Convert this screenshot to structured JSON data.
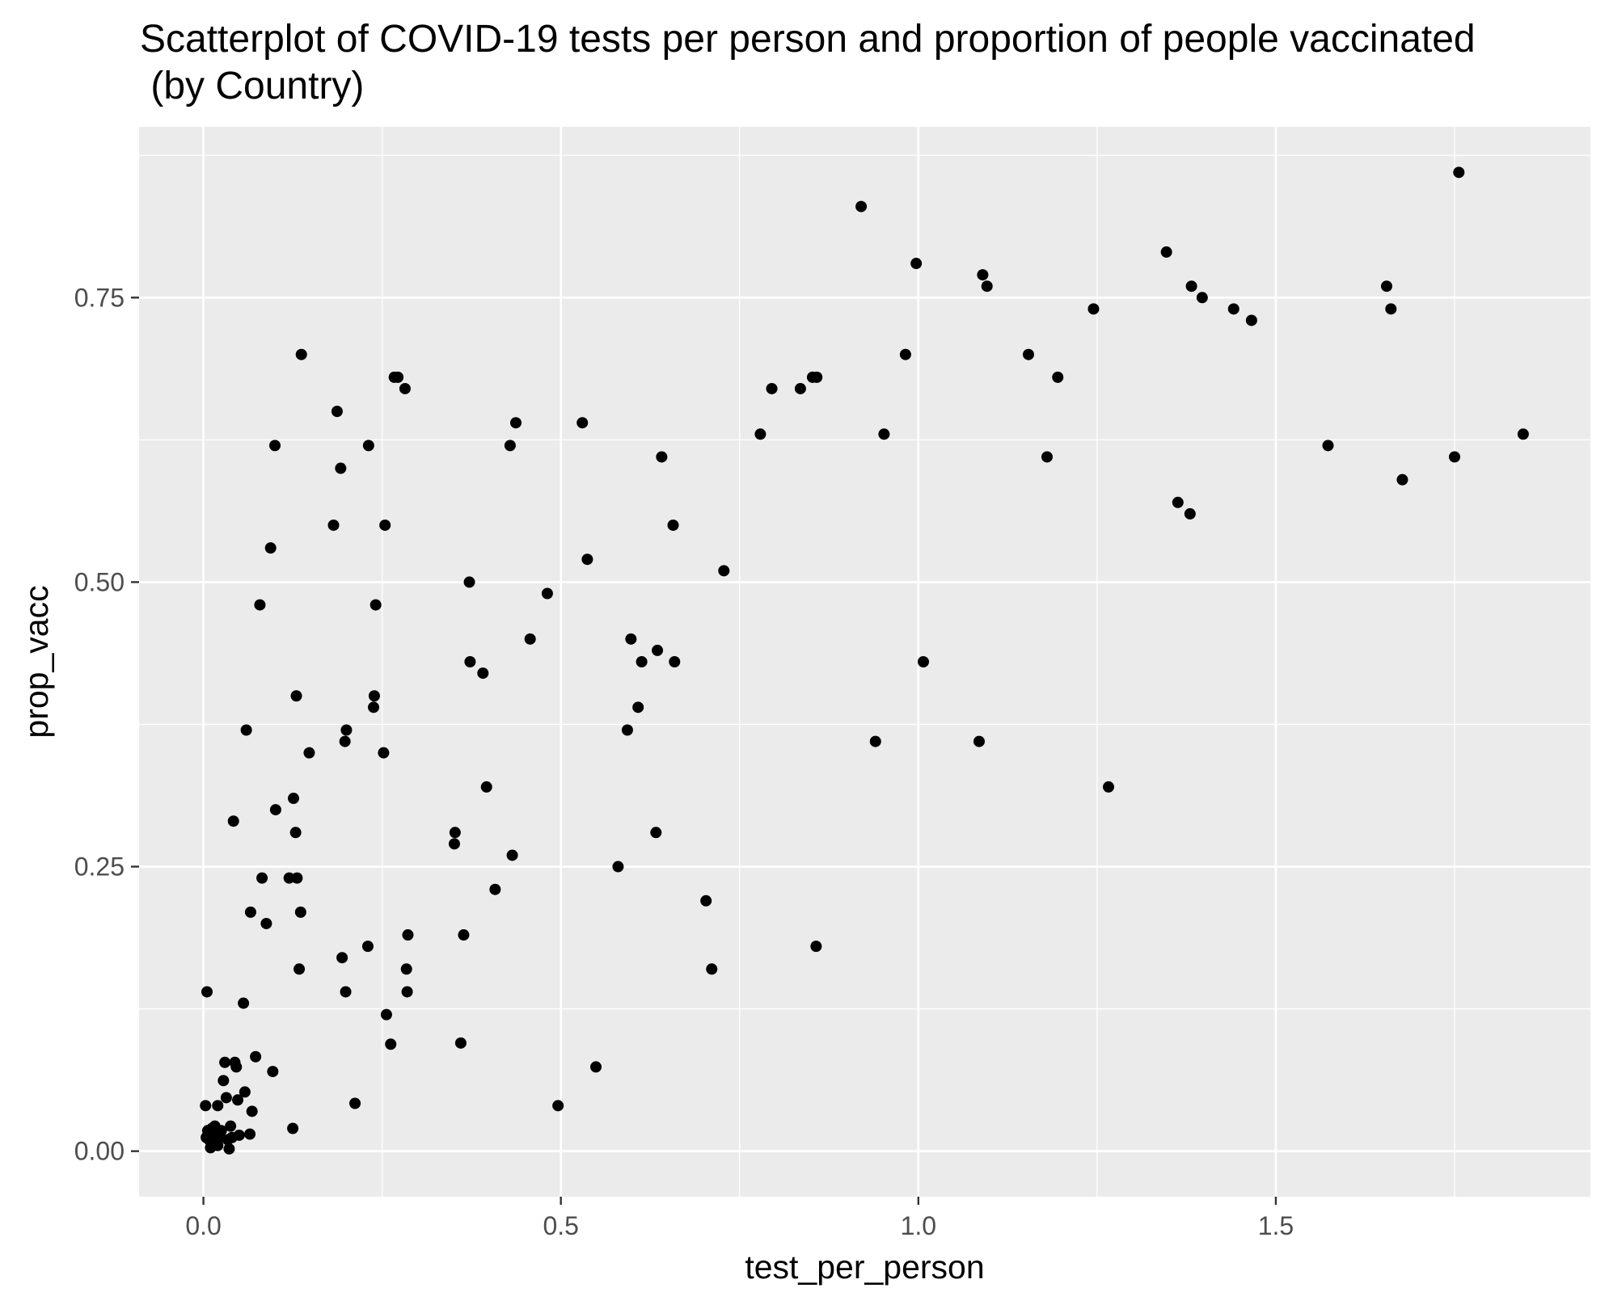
{
  "chart_data": {
    "type": "scatter",
    "title": "Scatterplot of COVID-19 tests per person and proportion of people vaccinated",
    "subtitle": " (by Country)",
    "xlabel": "test_per_person",
    "ylabel": "prop_vacc",
    "xlim": [
      -0.09,
      1.94
    ],
    "ylim": [
      -0.04,
      0.9
    ],
    "x_ticks": [
      0.0,
      0.5,
      1.0,
      1.5
    ],
    "x_tick_labels": [
      "0.0",
      "0.5",
      "1.0",
      "1.5"
    ],
    "y_ticks": [
      0.0,
      0.25,
      0.5,
      0.75
    ],
    "y_tick_labels": [
      "0.00",
      "0.25",
      "0.50",
      "0.75"
    ],
    "grid": true,
    "colors": {
      "panel_background": "#EBEBEB",
      "grid_major": "#FFFFFF",
      "point": "#000000",
      "tick_label": "#4D4D4D",
      "tick_mark": "#333333",
      "text": "#000000"
    },
    "points": [
      {
        "x": 0.003,
        "y": 0.04
      },
      {
        "x": 0.005,
        "y": 0.14
      },
      {
        "x": 0.004,
        "y": 0.012
      },
      {
        "x": 0.006,
        "y": 0.018
      },
      {
        "x": 0.008,
        "y": 0.01
      },
      {
        "x": 0.01,
        "y": 0.003
      },
      {
        "x": 0.012,
        "y": 0.02
      },
      {
        "x": 0.014,
        "y": 0.008
      },
      {
        "x": 0.016,
        "y": 0.022
      },
      {
        "x": 0.018,
        "y": 0.015
      },
      {
        "x": 0.02,
        "y": 0.005
      },
      {
        "x": 0.022,
        "y": 0.012
      },
      {
        "x": 0.025,
        "y": 0.018
      },
      {
        "x": 0.02,
        "y": 0.04
      },
      {
        "x": 0.028,
        "y": 0.062
      },
      {
        "x": 0.03,
        "y": 0.078
      },
      {
        "x": 0.032,
        "y": 0.047
      },
      {
        "x": 0.034,
        "y": 0.01
      },
      {
        "x": 0.036,
        "y": 0.002
      },
      {
        "x": 0.038,
        "y": 0.022
      },
      {
        "x": 0.04,
        "y": 0.012
      },
      {
        "x": 0.042,
        "y": 0.29
      },
      {
        "x": 0.044,
        "y": 0.078
      },
      {
        "x": 0.046,
        "y": 0.074
      },
      {
        "x": 0.048,
        "y": 0.045
      },
      {
        "x": 0.05,
        "y": 0.014
      },
      {
        "x": 0.056,
        "y": 0.13
      },
      {
        "x": 0.058,
        "y": 0.052
      },
      {
        "x": 0.06,
        "y": 0.37
      },
      {
        "x": 0.065,
        "y": 0.015
      },
      {
        "x": 0.066,
        "y": 0.21
      },
      {
        "x": 0.068,
        "y": 0.035
      },
      {
        "x": 0.073,
        "y": 0.083
      },
      {
        "x": 0.079,
        "y": 0.48
      },
      {
        "x": 0.082,
        "y": 0.24
      },
      {
        "x": 0.088,
        "y": 0.2
      },
      {
        "x": 0.094,
        "y": 0.53
      },
      {
        "x": 0.097,
        "y": 0.07
      },
      {
        "x": 0.1,
        "y": 0.62
      },
      {
        "x": 0.101,
        "y": 0.3
      },
      {
        "x": 0.12,
        "y": 0.24
      },
      {
        "x": 0.125,
        "y": 0.02
      },
      {
        "x": 0.126,
        "y": 0.31
      },
      {
        "x": 0.129,
        "y": 0.28
      },
      {
        "x": 0.13,
        "y": 0.4
      },
      {
        "x": 0.131,
        "y": 0.24
      },
      {
        "x": 0.134,
        "y": 0.16
      },
      {
        "x": 0.136,
        "y": 0.21
      },
      {
        "x": 0.137,
        "y": 0.7
      },
      {
        "x": 0.148,
        "y": 0.35
      },
      {
        "x": 0.182,
        "y": 0.55
      },
      {
        "x": 0.187,
        "y": 0.65
      },
      {
        "x": 0.192,
        "y": 0.6
      },
      {
        "x": 0.194,
        "y": 0.17
      },
      {
        "x": 0.198,
        "y": 0.36
      },
      {
        "x": 0.199,
        "y": 0.14
      },
      {
        "x": 0.2,
        "y": 0.37
      },
      {
        "x": 0.212,
        "y": 0.042
      },
      {
        "x": 0.23,
        "y": 0.18
      },
      {
        "x": 0.231,
        "y": 0.62
      },
      {
        "x": 0.238,
        "y": 0.39
      },
      {
        "x": 0.239,
        "y": 0.4
      },
      {
        "x": 0.241,
        "y": 0.48
      },
      {
        "x": 0.252,
        "y": 0.35
      },
      {
        "x": 0.254,
        "y": 0.55
      },
      {
        "x": 0.256,
        "y": 0.12
      },
      {
        "x": 0.262,
        "y": 0.094
      },
      {
        "x": 0.267,
        "y": 0.68
      },
      {
        "x": 0.272,
        "y": 0.68
      },
      {
        "x": 0.282,
        "y": 0.67
      },
      {
        "x": 0.284,
        "y": 0.16
      },
      {
        "x": 0.285,
        "y": 0.14
      },
      {
        "x": 0.286,
        "y": 0.19
      },
      {
        "x": 0.352,
        "y": 0.28
      },
      {
        "x": 0.351,
        "y": 0.27
      },
      {
        "x": 0.36,
        "y": 0.095
      },
      {
        "x": 0.364,
        "y": 0.19
      },
      {
        "x": 0.372,
        "y": 0.5
      },
      {
        "x": 0.373,
        "y": 0.43
      },
      {
        "x": 0.391,
        "y": 0.42
      },
      {
        "x": 0.396,
        "y": 0.32
      },
      {
        "x": 0.408,
        "y": 0.23
      },
      {
        "x": 0.429,
        "y": 0.62
      },
      {
        "x": 0.432,
        "y": 0.26
      },
      {
        "x": 0.437,
        "y": 0.64
      },
      {
        "x": 0.457,
        "y": 0.45
      },
      {
        "x": 0.481,
        "y": 0.49
      },
      {
        "x": 0.496,
        "y": 0.04
      },
      {
        "x": 0.53,
        "y": 0.64
      },
      {
        "x": 0.537,
        "y": 0.52
      },
      {
        "x": 0.549,
        "y": 0.074
      },
      {
        "x": 0.58,
        "y": 0.25
      },
      {
        "x": 0.593,
        "y": 0.37
      },
      {
        "x": 0.598,
        "y": 0.45
      },
      {
        "x": 0.608,
        "y": 0.39
      },
      {
        "x": 0.613,
        "y": 0.43
      },
      {
        "x": 0.633,
        "y": 0.28
      },
      {
        "x": 0.635,
        "y": 0.44
      },
      {
        "x": 0.641,
        "y": 0.61
      },
      {
        "x": 0.657,
        "y": 0.55
      },
      {
        "x": 0.659,
        "y": 0.43
      },
      {
        "x": 0.703,
        "y": 0.22
      },
      {
        "x": 0.711,
        "y": 0.16
      },
      {
        "x": 0.728,
        "y": 0.51
      },
      {
        "x": 0.779,
        "y": 0.63
      },
      {
        "x": 0.795,
        "y": 0.67
      },
      {
        "x": 0.835,
        "y": 0.67
      },
      {
        "x": 0.852,
        "y": 0.68
      },
      {
        "x": 0.857,
        "y": 0.18
      },
      {
        "x": 0.858,
        "y": 0.68
      },
      {
        "x": 0.92,
        "y": 0.83
      },
      {
        "x": 0.94,
        "y": 0.36
      },
      {
        "x": 0.952,
        "y": 0.63
      },
      {
        "x": 0.982,
        "y": 0.7
      },
      {
        "x": 0.997,
        "y": 0.78
      },
      {
        "x": 1.007,
        "y": 0.43
      },
      {
        "x": 1.085,
        "y": 0.36
      },
      {
        "x": 1.09,
        "y": 0.77
      },
      {
        "x": 1.096,
        "y": 0.76
      },
      {
        "x": 1.154,
        "y": 0.7
      },
      {
        "x": 1.18,
        "y": 0.61
      },
      {
        "x": 1.195,
        "y": 0.68
      },
      {
        "x": 1.245,
        "y": 0.74
      },
      {
        "x": 1.266,
        "y": 0.32
      },
      {
        "x": 1.347,
        "y": 0.79
      },
      {
        "x": 1.363,
        "y": 0.57
      },
      {
        "x": 1.38,
        "y": 0.56
      },
      {
        "x": 1.382,
        "y": 0.76
      },
      {
        "x": 1.397,
        "y": 0.75
      },
      {
        "x": 1.441,
        "y": 0.74
      },
      {
        "x": 1.466,
        "y": 0.73
      },
      {
        "x": 1.573,
        "y": 0.62
      },
      {
        "x": 1.655,
        "y": 0.76
      },
      {
        "x": 1.661,
        "y": 0.74
      },
      {
        "x": 1.677,
        "y": 0.59
      },
      {
        "x": 1.75,
        "y": 0.61
      },
      {
        "x": 1.756,
        "y": 0.86
      },
      {
        "x": 1.846,
        "y": 0.63
      }
    ]
  }
}
